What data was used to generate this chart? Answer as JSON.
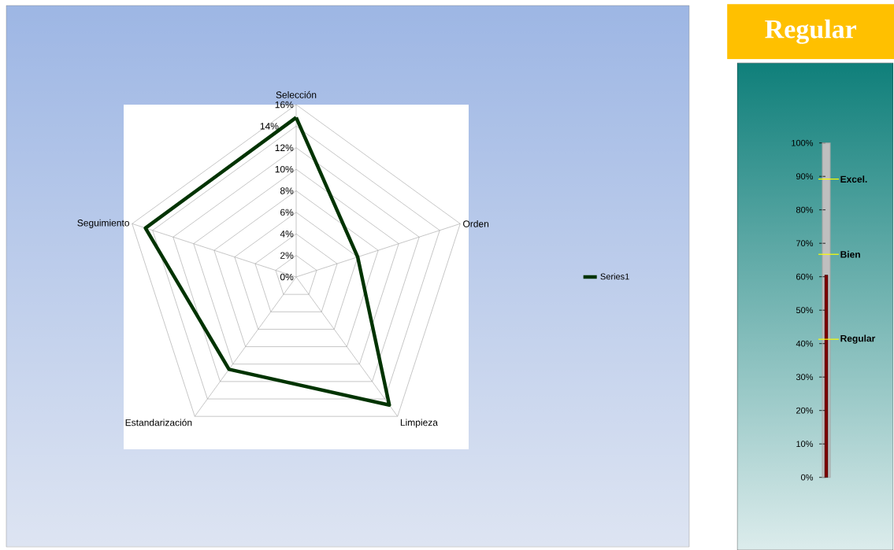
{
  "chart_data": [
    {
      "type": "radar",
      "categories": [
        "Selección",
        "Orden",
        "Limpieza",
        "Estandarización",
        "Seguimiento"
      ],
      "series": [
        {
          "name": "Series1",
          "color": "#003300",
          "values": [
            14.8,
            6.0,
            14.7,
            10.6,
            14.7
          ]
        }
      ],
      "ylim": [
        0,
        16
      ],
      "yticks": [
        {
          "value": 0,
          "label": "0%"
        },
        {
          "value": 2,
          "label": "2%"
        },
        {
          "value": 4,
          "label": "4%"
        },
        {
          "value": 6,
          "label": "6%"
        },
        {
          "value": 8,
          "label": "8%"
        },
        {
          "value": 10,
          "label": "10%"
        },
        {
          "value": 12,
          "label": "12%"
        },
        {
          "value": 14,
          "label": "14%"
        },
        {
          "value": 16,
          "label": "16%"
        }
      ],
      "grid": true,
      "legend": "right"
    },
    {
      "type": "bar",
      "title": "Regular",
      "categories": [
        null
      ],
      "values": [
        60.5
      ],
      "color": "#800000",
      "ylim": [
        0,
        100
      ],
      "yticks": [
        {
          "value": 0,
          "label": "0%"
        },
        {
          "value": 10,
          "label": "10%"
        },
        {
          "value": 20,
          "label": "20%"
        },
        {
          "value": 30,
          "label": "30%"
        },
        {
          "value": 40,
          "label": "40%"
        },
        {
          "value": 50,
          "label": "50%"
        },
        {
          "value": 60,
          "label": "60%"
        },
        {
          "value": 70,
          "label": "70%"
        },
        {
          "value": 80,
          "label": "80%"
        },
        {
          "value": 90,
          "label": "90%"
        },
        {
          "value": 100,
          "label": "100%"
        }
      ],
      "ref_lines": [
        {
          "axis": "y",
          "value": 89.2,
          "label": "Excel.",
          "color": "#ffff00"
        },
        {
          "axis": "y",
          "value": 66.7,
          "label": "Bien",
          "color": "#ffff00"
        },
        {
          "axis": "y",
          "value": 41.3,
          "label": "Regular",
          "color": "#ffff00"
        }
      ]
    }
  ]
}
